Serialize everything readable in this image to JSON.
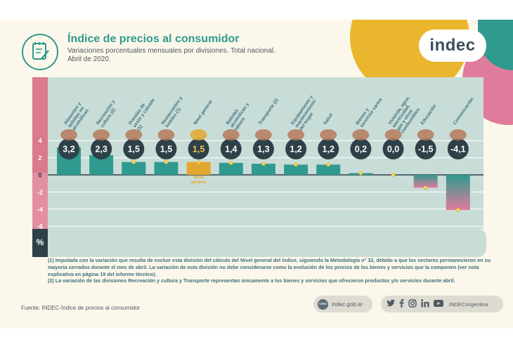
{
  "header": {
    "title": "Índice de precios al consumidor",
    "subtitle": "Variaciones porcentuales mensuales por divisiones. Total nacional.",
    "period": "Abril de 2020.",
    "logo": "indec"
  },
  "chart_data": {
    "type": "bar",
    "categories": [
      "Alimentos y bebidas no alcohólicas",
      "Recreación y cultura (2)",
      "Prendas de vestir y calzado (1)",
      "Restaurantes y hoteles (1)",
      "Nivel general",
      "Bebidas alcohólicas y tabaco",
      "Transporte (2)",
      "Equipamiento y mantenimiento del hogar",
      "Salud",
      "Bienes y servicios varios",
      "Vivienda, agua, electricidad, gas y otros combustibles",
      "Educación",
      "Comunicación"
    ],
    "values": [
      3.2,
      2.3,
      1.5,
      1.5,
      1.5,
      1.4,
      1.3,
      1.2,
      1.2,
      0.2,
      0.0,
      -1.5,
      -4.1
    ],
    "value_labels": [
      "3,2",
      "2,3",
      "1,5",
      "1,5",
      "1,5",
      "1,4",
      "1,3",
      "1,2",
      "1,2",
      "0,2",
      "0,0",
      "-1,5",
      "-4,1"
    ],
    "bar_label": "Nivel general",
    "highlight_index": 4,
    "yticks": [
      4,
      2,
      0,
      -2,
      -4,
      -6
    ],
    "ytick_labels": [
      "4",
      "2",
      "0",
      "-2",
      "-4",
      "-6"
    ],
    "ylim": [
      -6.6,
      5
    ],
    "yunit": "%",
    "colors": {
      "bar": "#2f9b8e",
      "highlight": "#e3a72f",
      "negative_bar_top": "#2f9b8e",
      "negative_bar_bottom": "#df7c9c",
      "value_disc": "#2e4048",
      "band": "#c9ddd8"
    }
  },
  "notes": {
    "note1": "(1) Imputada con la variación que resulta de excluir esta división del cálculo del Nivel general del índice, siguiendo la Metodología n° 32, debido a que los sectores permanecieron en su mayoría cerrados durante el mes de abril. La variación de esta división no debe considerarse como la evolución de los precios de los bienes y servicios que la componen (ver nota explicativa en página 19 del informe técnico).",
    "note2": "(2) La variación de las divisiones Recreación y cultura y Transporte representan únicamente a los bienes y servicios que ofrecieron productos y/o servicios durante abril."
  },
  "footer": {
    "source": "Fuente: INDEC-Índice de precios al consumidor",
    "web": "indec.gob.ar",
    "www_badge": "www",
    "social_handle": "INDECArgentina",
    "social_icons": [
      "twitter-icon",
      "facebook-icon",
      "instagram-icon",
      "linkedin-icon",
      "youtube-icon"
    ]
  }
}
